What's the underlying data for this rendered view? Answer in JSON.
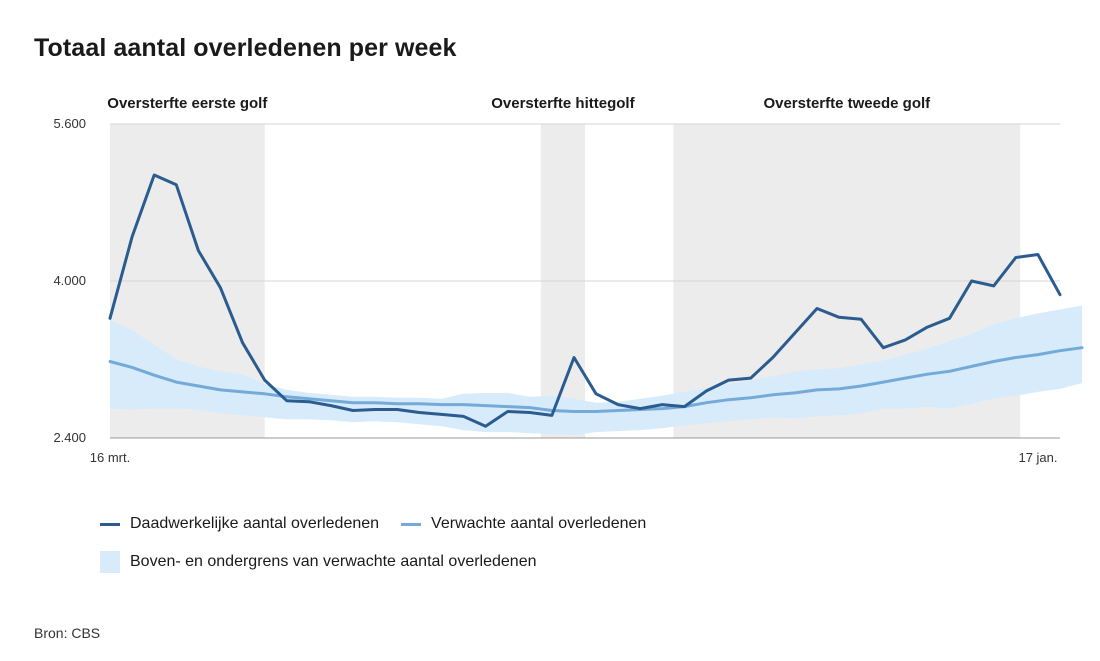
{
  "title": "Totaal aantal overledenen per week",
  "source": "Bron: CBS",
  "legend": {
    "actual": "Daadwerkelijke aantal overledenen",
    "expected": "Verwachte aantal overledenen",
    "band": "Boven- en ondergrens van verwachte aantal overledenen"
  },
  "colors": {
    "actual": "#2b5c8f",
    "expected": "#74aad8",
    "band": "#d8ebfa",
    "shade": "#ececec",
    "grid": "#d6d6d6"
  },
  "chart_data": {
    "type": "line",
    "title": "Totaal aantal overledenen per week",
    "x_start_label": "16 mrt.",
    "x_end_label": "17 jan.",
    "yticks": [
      2400,
      4000,
      5600
    ],
    "ytick_labels": [
      "2.400",
      "4.000",
      "5.600"
    ],
    "ylim": [
      2400,
      5600
    ],
    "grid": true,
    "legend_position": "bottom",
    "shaded_periods": [
      {
        "label": "Oversterfte eerste golf",
        "start": 0,
        "end": 7
      },
      {
        "label": "Oversterfte hittegolf",
        "start": 19.5,
        "end": 21.5
      },
      {
        "label": "Oversterfte tweede golf",
        "start": 25.5,
        "end": 41.2
      }
    ],
    "series": [
      {
        "name": "Daadwerkelijke aantal overledenen",
        "values": [
          3620,
          4450,
          5080,
          4980,
          4310,
          3930,
          3370,
          2990,
          2780,
          2770,
          2730,
          2680,
          2690,
          2690,
          2660,
          2640,
          2620,
          2520,
          2670,
          2660,
          2630,
          3220,
          2850,
          2740,
          2700,
          2740,
          2720,
          2880,
          2990,
          3010,
          3220,
          3470,
          3720,
          3630,
          3610,
          3320,
          3400,
          3530,
          3620,
          4000,
          3950,
          4240,
          4270,
          3860
        ]
      },
      {
        "name": "Verwachte aantal overledenen",
        "values": [
          3180,
          3120,
          3040,
          2970,
          2930,
          2890,
          2870,
          2850,
          2820,
          2800,
          2780,
          2760,
          2760,
          2750,
          2750,
          2740,
          2740,
          2730,
          2720,
          2710,
          2680,
          2670,
          2670,
          2680,
          2690,
          2700,
          2720,
          2760,
          2790,
          2810,
          2840,
          2860,
          2890,
          2900,
          2930,
          2970,
          3010,
          3050,
          3080,
          3130,
          3180,
          3220,
          3250,
          3290,
          3320
        ]
      },
      {
        "name": "Boven- en ondergrens van verwachte aantal overledenen",
        "upper": [
          3600,
          3500,
          3350,
          3200,
          3130,
          3080,
          3050,
          2950,
          2890,
          2860,
          2840,
          2820,
          2820,
          2810,
          2810,
          2800,
          2850,
          2860,
          2860,
          2820,
          2830,
          2800,
          2760,
          2770,
          2800,
          2830,
          2870,
          2910,
          2950,
          2990,
          3030,
          3080,
          3100,
          3110,
          3150,
          3190,
          3250,
          3310,
          3390,
          3460,
          3560,
          3620,
          3670,
          3710,
          3750
        ],
        "lower": [
          2700,
          2690,
          2700,
          2700,
          2690,
          2650,
          2630,
          2610,
          2590,
          2590,
          2580,
          2560,
          2570,
          2560,
          2540,
          2520,
          2480,
          2460,
          2460,
          2450,
          2440,
          2430,
          2460,
          2470,
          2480,
          2500,
          2530,
          2550,
          2570,
          2590,
          2610,
          2600,
          2620,
          2630,
          2650,
          2700,
          2700,
          2720,
          2700,
          2750,
          2800,
          2830,
          2870,
          2900,
          2960
        ]
      }
    ]
  }
}
